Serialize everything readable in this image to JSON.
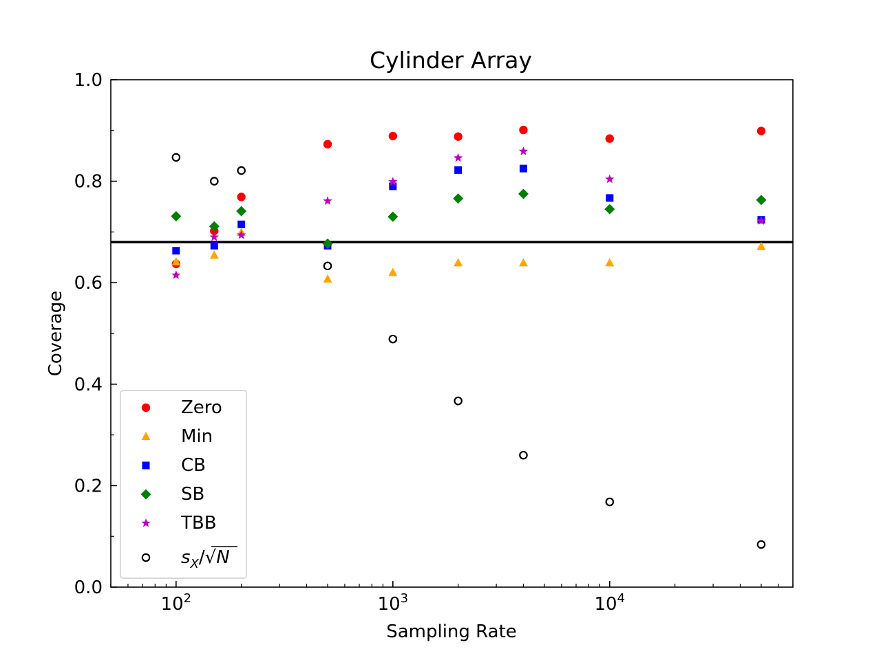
{
  "chart_data": {
    "type": "scatter",
    "title": "Cylinder Array",
    "xlabel": "Sampling Rate",
    "ylabel": "Coverage",
    "xscale": "log",
    "xlim": [
      50,
      70000
    ],
    "ylim": [
      0.0,
      1.0
    ],
    "xticks": [
      {
        "value": 100,
        "base": "10",
        "exp": "2"
      },
      {
        "value": 1000,
        "base": "10",
        "exp": "3"
      },
      {
        "value": 10000,
        "base": "10",
        "exp": "4"
      }
    ],
    "yticks": [
      "0.0",
      "0.2",
      "0.4",
      "0.6",
      "0.8",
      "1.0"
    ],
    "reference_line": 0.68,
    "grid": false,
    "legend_position": "lower-left",
    "x": [
      100,
      150,
      200,
      500,
      1000,
      2000,
      4000,
      10000,
      50000
    ],
    "series": [
      {
        "name": "Zero",
        "marker": "circle",
        "color": "#ff0000",
        "values": [
          0.637,
          0.702,
          0.769,
          0.873,
          0.889,
          0.888,
          0.901,
          0.884,
          0.899
        ]
      },
      {
        "name": "Min",
        "marker": "triangle",
        "color": "#ffa500",
        "values": [
          0.641,
          0.654,
          0.699,
          0.607,
          0.62,
          0.639,
          0.639,
          0.639,
          0.671
        ]
      },
      {
        "name": "CB",
        "marker": "square",
        "color": "#0000ff",
        "values": [
          0.663,
          0.673,
          0.715,
          0.673,
          0.79,
          0.822,
          0.825,
          0.767,
          0.724
        ]
      },
      {
        "name": "SB",
        "marker": "diamond",
        "color": "#008000",
        "values": [
          0.731,
          0.711,
          0.741,
          0.677,
          0.73,
          0.766,
          0.775,
          0.745,
          0.763
        ]
      },
      {
        "name": "TBB",
        "marker": "star",
        "color": "#bf00bf",
        "values": [
          0.615,
          0.69,
          0.694,
          0.761,
          0.799,
          0.846,
          0.859,
          0.804,
          0.722
        ]
      },
      {
        "name": "s_X/√N",
        "name_parts": {
          "s": "s",
          "sub": "X",
          "slash": "/",
          "root": "√",
          "n": "N"
        },
        "marker": "open-circle",
        "color": "#000000",
        "values": [
          0.847,
          0.8,
          0.821,
          0.633,
          0.489,
          0.367,
          0.26,
          0.168,
          0.084
        ]
      }
    ]
  }
}
